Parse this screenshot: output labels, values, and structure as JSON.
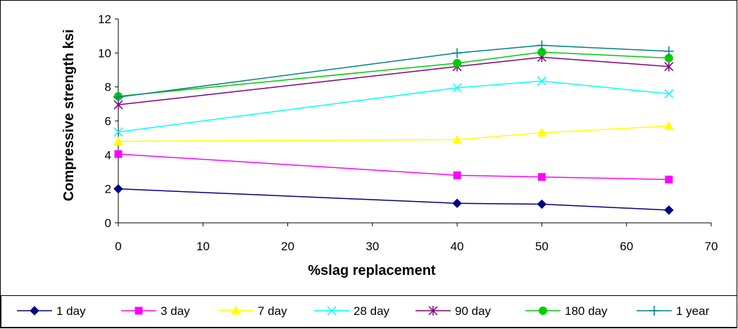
{
  "chart_data": {
    "type": "line",
    "title": "",
    "xlabel": "%slag replacement",
    "ylabel": "Compressive strength ksi",
    "x": [
      0,
      40,
      50,
      65
    ],
    "xlim": [
      0,
      70
    ],
    "ylim": [
      0,
      12
    ],
    "xticks": [
      0,
      10,
      20,
      30,
      40,
      50,
      60,
      70
    ],
    "yticks": [
      0,
      2,
      4,
      6,
      8,
      10,
      12
    ],
    "grid": false,
    "legend_position": "bottom",
    "series": [
      {
        "name": "1 day",
        "values": [
          2.0,
          1.15,
          1.1,
          0.75
        ],
        "color": "#000080",
        "marker": "diamond"
      },
      {
        "name": "3 day",
        "values": [
          4.05,
          2.8,
          2.7,
          2.55
        ],
        "color": "#ff00ff",
        "marker": "square"
      },
      {
        "name": "7 day",
        "values": [
          4.8,
          4.9,
          5.3,
          5.7
        ],
        "color": "#ffff00",
        "marker": "triangle"
      },
      {
        "name": "28 day",
        "values": [
          5.35,
          7.95,
          8.35,
          7.6
        ],
        "color": "#00ffff",
        "marker": "x"
      },
      {
        "name": "90 day",
        "values": [
          6.95,
          9.2,
          9.75,
          9.2
        ],
        "color": "#800080",
        "marker": "star"
      },
      {
        "name": "180 day",
        "values": [
          7.45,
          9.4,
          10.05,
          9.7
        ],
        "color": "#00cc00",
        "marker": "circle"
      },
      {
        "name": "1 year",
        "values": [
          7.4,
          10.0,
          10.45,
          10.1
        ],
        "color": "#008080",
        "marker": "plus"
      }
    ]
  }
}
